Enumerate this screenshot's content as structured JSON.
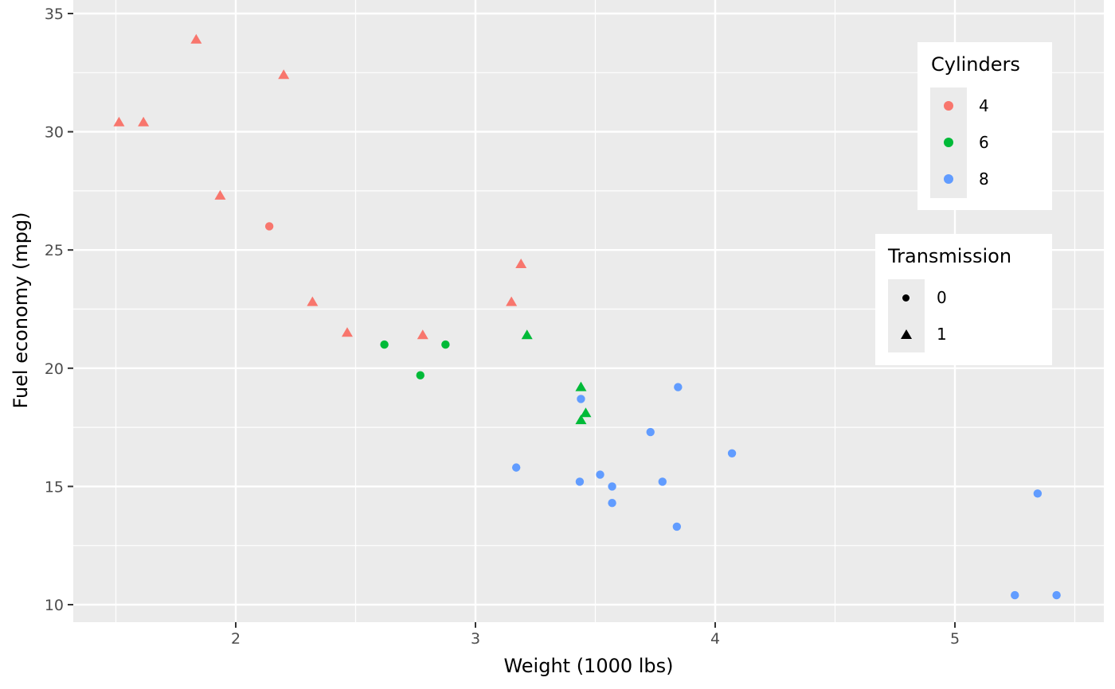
{
  "chart_data": {
    "type": "scatter",
    "title": "",
    "xlabel": "Weight (1000 lbs)",
    "ylabel": "Fuel economy (mpg)",
    "xlim": [
      1.32,
      5.62
    ],
    "ylim": [
      9.3,
      35.6
    ],
    "x_ticks": [
      2,
      3,
      4,
      5
    ],
    "y_ticks": [
      10,
      15,
      20,
      25,
      30,
      35
    ],
    "grid": true,
    "legend_position": "right-inside",
    "legends": [
      {
        "title": "Cylinders",
        "aesthetic": "color",
        "entries": [
          {
            "label": "4",
            "color": "#F8766D"
          },
          {
            "label": "6",
            "color": "#00BA38"
          },
          {
            "label": "8",
            "color": "#619CFF"
          }
        ]
      },
      {
        "title": "Transmission",
        "aesthetic": "shape",
        "entries": [
          {
            "label": "0",
            "shape": "circle"
          },
          {
            "label": "1",
            "shape": "triangle"
          }
        ]
      }
    ],
    "series": [
      {
        "name": "cyl 4",
        "color": "#F8766D",
        "points": [
          {
            "x": 1.835,
            "y": 33.9,
            "shape": "triangle"
          },
          {
            "x": 2.2,
            "y": 32.4,
            "shape": "triangle"
          },
          {
            "x": 1.513,
            "y": 30.4,
            "shape": "triangle"
          },
          {
            "x": 1.615,
            "y": 30.4,
            "shape": "triangle"
          },
          {
            "x": 1.935,
            "y": 27.3,
            "shape": "triangle"
          },
          {
            "x": 2.14,
            "y": 26.0,
            "shape": "circle"
          },
          {
            "x": 2.32,
            "y": 22.8,
            "shape": "triangle"
          },
          {
            "x": 2.465,
            "y": 21.5,
            "shape": "triangle"
          },
          {
            "x": 2.78,
            "y": 21.4,
            "shape": "triangle"
          },
          {
            "x": 3.19,
            "y": 24.4,
            "shape": "triangle"
          },
          {
            "x": 3.15,
            "y": 22.8,
            "shape": "triangle"
          }
        ]
      },
      {
        "name": "cyl 6",
        "color": "#00BA38",
        "points": [
          {
            "x": 2.62,
            "y": 21.0,
            "shape": "circle"
          },
          {
            "x": 2.875,
            "y": 21.0,
            "shape": "circle"
          },
          {
            "x": 2.77,
            "y": 19.7,
            "shape": "circle"
          },
          {
            "x": 3.215,
            "y": 21.4,
            "shape": "triangle"
          },
          {
            "x": 3.44,
            "y": 19.2,
            "shape": "triangle"
          },
          {
            "x": 3.46,
            "y": 18.1,
            "shape": "triangle"
          },
          {
            "x": 3.44,
            "y": 17.8,
            "shape": "triangle"
          }
        ]
      },
      {
        "name": "cyl 8",
        "color": "#619CFF",
        "points": [
          {
            "x": 3.44,
            "y": 18.7,
            "shape": "circle"
          },
          {
            "x": 3.845,
            "y": 19.2,
            "shape": "circle"
          },
          {
            "x": 3.73,
            "y": 17.3,
            "shape": "circle"
          },
          {
            "x": 4.07,
            "y": 16.4,
            "shape": "circle"
          },
          {
            "x": 3.17,
            "y": 15.8,
            "shape": "circle"
          },
          {
            "x": 3.52,
            "y": 15.5,
            "shape": "circle"
          },
          {
            "x": 3.435,
            "y": 15.2,
            "shape": "circle"
          },
          {
            "x": 3.78,
            "y": 15.2,
            "shape": "circle"
          },
          {
            "x": 3.57,
            "y": 15.0,
            "shape": "circle"
          },
          {
            "x": 3.57,
            "y": 14.3,
            "shape": "circle"
          },
          {
            "x": 3.84,
            "y": 13.3,
            "shape": "circle"
          },
          {
            "x": 5.345,
            "y": 14.7,
            "shape": "circle"
          },
          {
            "x": 5.25,
            "y": 10.4,
            "shape": "circle"
          },
          {
            "x": 5.424,
            "y": 10.4,
            "shape": "circle"
          }
        ]
      }
    ]
  },
  "legend": {
    "cylinders": {
      "title": "Cylinders",
      "labels": [
        "4",
        "6",
        "8"
      ]
    },
    "transmission": {
      "title": "Transmission",
      "labels": [
        "0",
        "1"
      ]
    }
  },
  "axes": {
    "x_title": "Weight (1000 lbs)",
    "y_title": "Fuel economy (mpg)"
  }
}
